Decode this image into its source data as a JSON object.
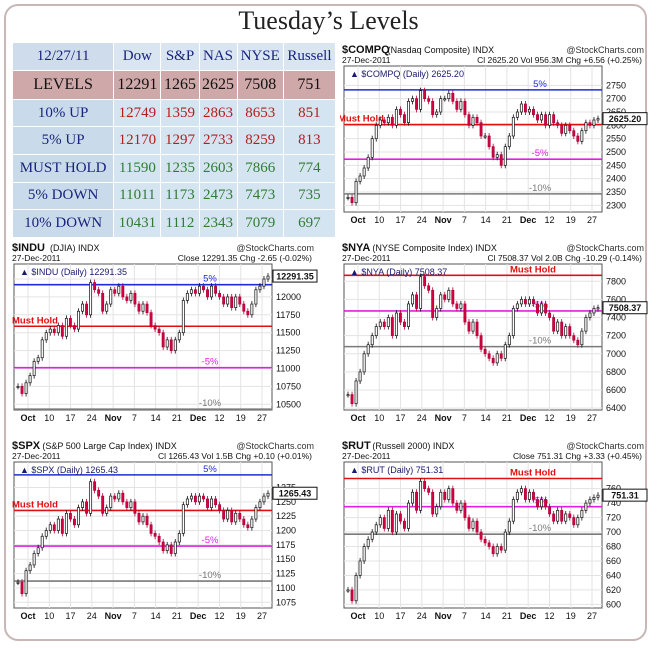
{
  "title": "Tuesday’s Levels",
  "levels_table": {
    "date": "12/27/11",
    "columns": [
      "Dow",
      "S&P",
      "NAS",
      "NYSE",
      "Russell"
    ],
    "rows": [
      {
        "label": "LEVELS",
        "values": [
          "12291",
          "1265",
          "2625",
          "7508",
          "751"
        ]
      },
      {
        "label": "10% UP",
        "values": [
          "12749",
          "1359",
          "2863",
          "8653",
          "851"
        ]
      },
      {
        "label": "5% UP",
        "values": [
          "12170",
          "1297",
          "2733",
          "8259",
          "813"
        ]
      },
      {
        "label": "MUST HOLD",
        "values": [
          "11590",
          "1235",
          "2603",
          "7866",
          "774"
        ]
      },
      {
        "label": "5% DOWN",
        "values": [
          "11011",
          "1173",
          "2473",
          "7473",
          "735"
        ]
      },
      {
        "label": "10% DOWN",
        "values": [
          "10431",
          "1112",
          "2343",
          "7079",
          "697"
        ]
      }
    ],
    "colors": {
      "up": "#b71c1c",
      "down": "#2e7d32",
      "levels": "#111111"
    }
  },
  "chart_data": [
    {
      "type": "line",
      "symbol": "$COMPQ",
      "name": "(Nasdaq Composite)",
      "exchange": "INDX",
      "source": "@StockCharts.com",
      "date": "27-Dec-2011",
      "info": "Cl 2625.20  Vol 956.3M  Chg +6.56 (+0.25%)",
      "legend": "$COMPQ (Daily) 2625.20",
      "last_value": "2625.20",
      "ylim": [
        2275,
        2785
      ],
      "yticks": [
        2300,
        2350,
        2400,
        2450,
        2500,
        2550,
        2600,
        2650,
        2700,
        2750
      ],
      "xticks": [
        "Oct",
        "10",
        "17",
        "24",
        "Nov",
        "7",
        "14",
        "21",
        "Dec",
        "12",
        "19",
        "27"
      ],
      "x": [
        1,
        2,
        3,
        4,
        5,
        6,
        7,
        8,
        9,
        10,
        11,
        12,
        13,
        14,
        15,
        16,
        17,
        18,
        19,
        20,
        21,
        22,
        23,
        24,
        25,
        26,
        27,
        28,
        29,
        30,
        31,
        32,
        33,
        34,
        35,
        36,
        37,
        38,
        39,
        40,
        41,
        42,
        43,
        44,
        45,
        46,
        47,
        48,
        49,
        50,
        51,
        52,
        53,
        54,
        55,
        56,
        57,
        58,
        59,
        60,
        61,
        62,
        63
      ],
      "values": [
        2330,
        2310,
        2390,
        2410,
        2440,
        2480,
        2550,
        2600,
        2620,
        2610,
        2630,
        2600,
        2660,
        2640,
        2610,
        2690,
        2700,
        2660,
        2730,
        2700,
        2690,
        2640,
        2650,
        2700,
        2700,
        2720,
        2690,
        2660,
        2690,
        2640,
        2600,
        2630,
        2610,
        2560,
        2560,
        2520,
        2480,
        2490,
        2450,
        2520,
        2560,
        2630,
        2650,
        2680,
        2650,
        2660,
        2640,
        2620,
        2640,
        2600,
        2640,
        2610,
        2600,
        2570,
        2600,
        2580,
        2560,
        2540,
        2580,
        2610,
        2600,
        2620,
        2625
      ],
      "lines": [
        {
          "label": "5%",
          "value": 2733,
          "color": "#1f2bd6"
        },
        {
          "label": "Must Hold",
          "value": 2603,
          "color": "#e01010"
        },
        {
          "label": "-5%",
          "value": 2473,
          "color": "#e020e0"
        },
        {
          "label": "-10%",
          "value": 2343,
          "color": "#7a7a7a"
        }
      ],
      "x_range": [
        1,
        63
      ]
    },
    {
      "type": "line",
      "symbol": "$INDU",
      "name": "(DJIA)",
      "exchange": "INDX",
      "source": "@StockCharts.com",
      "date": "27-Dec-2011",
      "info": "Close 12291.35  Chg -2.65 (-0.02%)",
      "legend": "$INDU (Daily) 12291.35",
      "last_value": "12291.35",
      "ylim": [
        10420,
        12320
      ],
      "yticks": [
        10500,
        10750,
        11000,
        11250,
        11500,
        11750,
        12000,
        12250
      ],
      "xticks": [
        "Oct",
        "10",
        "17",
        "24",
        "Nov",
        "7",
        "14",
        "21",
        "Dec",
        "12",
        "19",
        "27"
      ],
      "x": [
        1,
        2,
        3,
        4,
        5,
        6,
        7,
        8,
        9,
        10,
        11,
        12,
        13,
        14,
        15,
        16,
        17,
        18,
        19,
        20,
        21,
        22,
        23,
        24,
        25,
        26,
        27,
        28,
        29,
        30,
        31,
        32,
        33,
        34,
        35,
        36,
        37,
        38,
        39,
        40,
        41,
        42,
        43,
        44,
        45,
        46,
        47,
        48,
        49,
        50,
        51,
        52,
        53,
        54,
        55,
        56,
        57,
        58,
        59,
        60,
        61,
        62,
        63
      ],
      "values": [
        10750,
        10650,
        10800,
        10900,
        11100,
        11150,
        11400,
        11500,
        11550,
        11500,
        11600,
        11450,
        11700,
        11600,
        11550,
        11800,
        11900,
        11750,
        12200,
        12100,
        12050,
        11800,
        11900,
        12100,
        12050,
        12150,
        12000,
        11950,
        12050,
        11900,
        11800,
        11900,
        11780,
        11600,
        11550,
        11500,
        11300,
        11400,
        11250,
        11400,
        11500,
        11950,
        12050,
        12100,
        12050,
        12150,
        12100,
        12000,
        12150,
        12050,
        12000,
        11900,
        12000,
        11850,
        12000,
        11900,
        11800,
        11750,
        11900,
        12100,
        12150,
        12250,
        12291
      ],
      "lines": [
        {
          "label": "5%",
          "value": 12170,
          "color": "#1f2bd6"
        },
        {
          "label": "Must Hold",
          "value": 11590,
          "color": "#e01010"
        },
        {
          "label": "-5%",
          "value": 11011,
          "color": "#e020e0"
        },
        {
          "label": "-10%",
          "value": 10431,
          "color": "#7a7a7a"
        }
      ],
      "x_range": [
        1,
        63
      ]
    },
    {
      "type": "line",
      "symbol": "$NYA",
      "name": "(NYSE Composite Index)",
      "exchange": "INDX",
      "source": "@StockCharts.com",
      "date": "27-Dec-2011",
      "info": "Cl 7508.37  Vol 2.0B  Chg -10.29 (-0.14%)",
      "legend": "$NYA (Daily) 7508.37",
      "last_value": "7508.37",
      "ylim": [
        6380,
        7880
      ],
      "yticks": [
        6400,
        6600,
        6800,
        7000,
        7200,
        7400,
        7600,
        7800
      ],
      "xticks": [
        "Oct",
        "10",
        "17",
        "24",
        "Nov",
        "7",
        "14",
        "21",
        "Dec",
        "12",
        "19",
        "27"
      ],
      "x": [
        1,
        2,
        3,
        4,
        5,
        6,
        7,
        8,
        9,
        10,
        11,
        12,
        13,
        14,
        15,
        16,
        17,
        18,
        19,
        20,
        21,
        22,
        23,
        24,
        25,
        26,
        27,
        28,
        29,
        30,
        31,
        32,
        33,
        34,
        35,
        36,
        37,
        38,
        39,
        40,
        41,
        42,
        43,
        44,
        45,
        46,
        47,
        48,
        49,
        50,
        51,
        52,
        53,
        54,
        55,
        56,
        57,
        58,
        59,
        60,
        61,
        62,
        63
      ],
      "values": [
        6550,
        6450,
        6700,
        6800,
        7000,
        7100,
        7200,
        7300,
        7350,
        7300,
        7400,
        7200,
        7450,
        7350,
        7300,
        7550,
        7650,
        7500,
        7850,
        7750,
        7700,
        7400,
        7500,
        7650,
        7600,
        7700,
        7550,
        7500,
        7550,
        7350,
        7250,
        7350,
        7200,
        7050,
        7000,
        6950,
        6900,
        7000,
        6950,
        7100,
        7200,
        7500,
        7550,
        7600,
        7550,
        7600,
        7550,
        7450,
        7550,
        7450,
        7400,
        7250,
        7350,
        7200,
        7300,
        7200,
        7150,
        7100,
        7250,
        7400,
        7450,
        7500,
        7508
      ],
      "lines": [
        {
          "label": "Must Hold",
          "value": 7866,
          "color": "#e01010"
        },
        {
          "label": "-5%",
          "value": 7473,
          "color": "#e020e0"
        },
        {
          "label": "-10%",
          "value": 7079,
          "color": "#7a7a7a"
        }
      ],
      "x_range": [
        1,
        63
      ]
    },
    {
      "type": "line",
      "symbol": "$SPX",
      "name": "(S&P 500 Large Cap Index)",
      "exchange": "INDX",
      "source": "@StockCharts.com",
      "date": "27-Dec-2011",
      "info": "Cl 1265.43  Vol 1.5B  Chg +0.10 (+0.01%)",
      "legend": "$SPX (Daily) 1265.43",
      "last_value": "1265.43",
      "ylim": [
        1065,
        1302
      ],
      "yticks": [
        1075,
        1100,
        1125,
        1150,
        1175,
        1200,
        1225,
        1250,
        1275
      ],
      "xticks": [
        "Oct",
        "10",
        "17",
        "24",
        "Nov",
        "7",
        "14",
        "21",
        "Dec",
        "12",
        "19",
        "27"
      ],
      "x": [
        1,
        2,
        3,
        4,
        5,
        6,
        7,
        8,
        9,
        10,
        11,
        12,
        13,
        14,
        15,
        16,
        17,
        18,
        19,
        20,
        21,
        22,
        23,
        24,
        25,
        26,
        27,
        28,
        29,
        30,
        31,
        32,
        33,
        34,
        35,
        36,
        37,
        38,
        39,
        40,
        41,
        42,
        43,
        44,
        45,
        46,
        47,
        48,
        49,
        50,
        51,
        52,
        53,
        54,
        55,
        56,
        57,
        58,
        59,
        60,
        61,
        62,
        63
      ],
      "values": [
        1110,
        1090,
        1130,
        1140,
        1160,
        1170,
        1190,
        1200,
        1210,
        1200,
        1220,
        1195,
        1230,
        1220,
        1210,
        1240,
        1250,
        1230,
        1285,
        1270,
        1260,
        1230,
        1240,
        1260,
        1255,
        1265,
        1250,
        1240,
        1250,
        1230,
        1215,
        1225,
        1210,
        1195,
        1190,
        1180,
        1165,
        1175,
        1160,
        1180,
        1195,
        1245,
        1255,
        1260,
        1250,
        1260,
        1255,
        1240,
        1255,
        1245,
        1235,
        1220,
        1235,
        1215,
        1230,
        1220,
        1210,
        1205,
        1220,
        1240,
        1250,
        1260,
        1265
      ],
      "lines": [
        {
          "label": "5%",
          "value": 1297,
          "color": "#1f2bd6"
        },
        {
          "label": "Must Hold",
          "value": 1235,
          "color": "#e01010"
        },
        {
          "label": "-5%",
          "value": 1173,
          "color": "#e020e0"
        },
        {
          "label": "-10%",
          "value": 1112,
          "color": "#7a7a7a"
        }
      ],
      "x_range": [
        1,
        63
      ]
    },
    {
      "type": "line",
      "symbol": "$RUT",
      "name": "(Russell 2000)",
      "exchange": "INDX",
      "source": "@StockCharts.com",
      "date": "27-Dec-2011",
      "info": "Close 751.31  Chg +3.33 (+0.45%)",
      "legend": "$RUT (Daily) 751.31",
      "last_value": "751.31",
      "ylim": [
        595,
        783
      ],
      "yticks": [
        600,
        620,
        640,
        660,
        680,
        700,
        720,
        740,
        760
      ],
      "xticks": [
        "Oct",
        "10",
        "17",
        "24",
        "Nov",
        "7",
        "14",
        "21",
        "Dec",
        "12",
        "19",
        "27"
      ],
      "x": [
        1,
        2,
        3,
        4,
        5,
        6,
        7,
        8,
        9,
        10,
        11,
        12,
        13,
        14,
        15,
        16,
        17,
        18,
        19,
        20,
        21,
        22,
        23,
        24,
        25,
        26,
        27,
        28,
        29,
        30,
        31,
        32,
        33,
        34,
        35,
        36,
        37,
        38,
        39,
        40,
        41,
        42,
        43,
        44,
        45,
        46,
        47,
        48,
        49,
        50,
        51,
        52,
        53,
        54,
        55,
        56,
        57,
        58,
        59,
        60,
        61,
        62,
        63
      ],
      "values": [
        620,
        605,
        640,
        660,
        680,
        690,
        700,
        710,
        720,
        705,
        730,
        700,
        725,
        715,
        705,
        740,
        755,
        730,
        770,
        760,
        755,
        725,
        735,
        755,
        745,
        760,
        740,
        730,
        740,
        720,
        705,
        715,
        700,
        690,
        685,
        680,
        670,
        680,
        675,
        700,
        715,
        745,
        755,
        760,
        745,
        755,
        745,
        735,
        745,
        735,
        725,
        715,
        730,
        715,
        725,
        720,
        710,
        720,
        730,
        740,
        745,
        748,
        751
      ],
      "lines": [
        {
          "label": "Must Hold",
          "value": 774,
          "color": "#e01010"
        },
        {
          "label": "-5%",
          "value": 735,
          "color": "#e020e0"
        },
        {
          "label": "-10%",
          "value": 697,
          "color": "#7a7a7a"
        }
      ],
      "x_range": [
        1,
        63
      ]
    }
  ]
}
